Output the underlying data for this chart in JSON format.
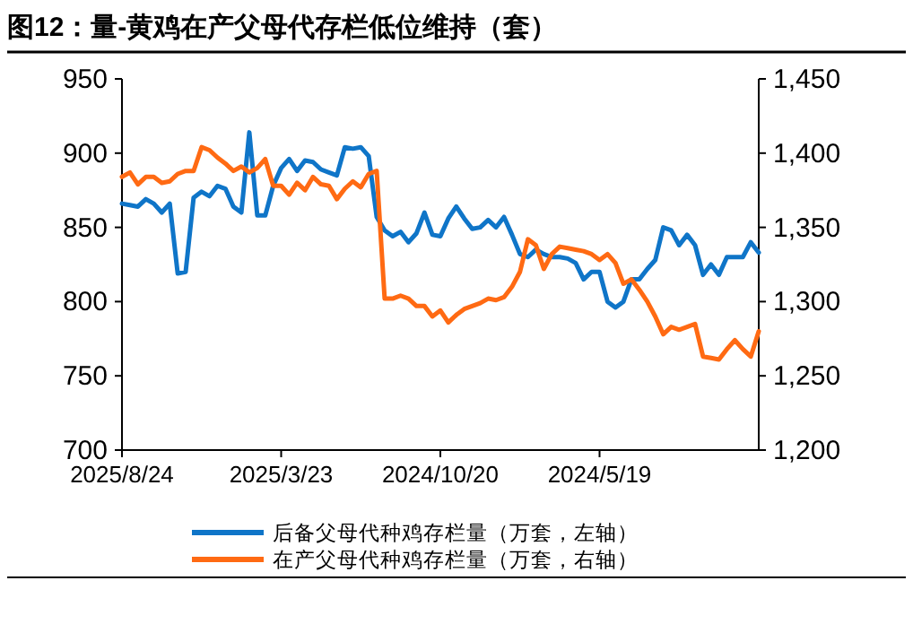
{
  "chart_data": {
    "type": "line",
    "title": "图12：量-黄鸡在产父母代存栏低位维持（套）",
    "categories": [
      "2025/8/24",
      null,
      null,
      null,
      null,
      null,
      null,
      null,
      null,
      null,
      null,
      null,
      null,
      null,
      null,
      null,
      null,
      null,
      null,
      null,
      "2025/3/23",
      null,
      null,
      null,
      null,
      null,
      null,
      null,
      null,
      null,
      null,
      null,
      null,
      null,
      null,
      null,
      null,
      null,
      null,
      null,
      "2024/10/20",
      null,
      null,
      null,
      null,
      null,
      null,
      null,
      null,
      null,
      null,
      null,
      null,
      null,
      null,
      null,
      null,
      null,
      null,
      null,
      "2024/5/19",
      null,
      null,
      null,
      null,
      null,
      null,
      null,
      null,
      null,
      null,
      null,
      null,
      null,
      null,
      null,
      null,
      null,
      null,
      null,
      null
    ],
    "series": [
      {
        "name": "后备父母代种鸡存栏量（万套，左轴）",
        "color": "#0f75c8",
        "values": [
          866,
          865,
          864,
          869,
          866,
          860,
          866,
          819,
          820,
          870,
          874,
          871,
          878,
          876,
          864,
          860,
          914,
          858,
          858,
          878,
          890,
          896,
          888,
          895,
          894,
          889,
          887,
          885,
          904,
          903,
          904,
          898,
          857,
          848,
          844,
          847,
          840,
          846,
          860,
          845,
          844,
          856,
          864,
          856,
          849,
          850,
          855,
          850,
          857,
          845,
          832,
          830,
          835,
          832,
          830,
          830,
          829,
          826,
          815,
          820,
          820,
          800,
          796,
          800,
          815,
          815,
          822,
          828,
          850,
          848,
          838,
          845,
          838,
          818,
          825,
          818,
          830,
          830,
          830,
          840,
          833
        ]
      },
      {
        "name": "在产父母代种鸡存栏量（万套，右轴）",
        "color": "#ff6a13",
        "axis": "y2",
        "values": [
          1384,
          1387,
          1379,
          1384,
          1384,
          1380,
          1381,
          1386,
          1388,
          1388,
          1404,
          1402,
          1397,
          1393,
          1388,
          1391,
          1387,
          1390,
          1396,
          1378,
          1378,
          1372,
          1380,
          1375,
          1384,
          1379,
          1378,
          1369,
          1376,
          1381,
          1377,
          1386,
          1388,
          1302,
          1302,
          1304,
          1302,
          1297,
          1297,
          1290,
          1294,
          1286,
          1291,
          1295,
          1297,
          1299,
          1302,
          1301,
          1303,
          1310,
          1320,
          1342,
          1338,
          1322,
          1332,
          1337,
          1336,
          1335,
          1334,
          1332,
          1328,
          1332,
          1326,
          1312,
          1315,
          1308,
          1300,
          1290,
          1278,
          1283,
          1281,
          1283,
          1285,
          1263,
          1262,
          1261,
          1268,
          1274,
          1268,
          1263,
          1280
        ]
      }
    ],
    "ylim": [
      700,
      950
    ],
    "yticks": [
      700,
      750,
      800,
      850,
      900,
      950
    ],
    "y2lim": [
      1200,
      1450
    ],
    "y2ticks": [
      {
        "value": 1200,
        "label": "1,200"
      },
      {
        "value": 1250,
        "label": "1,250"
      },
      {
        "value": 1300,
        "label": "1,300"
      },
      {
        "value": 1350,
        "label": "1,350"
      },
      {
        "value": 1400,
        "label": "1,400"
      },
      {
        "value": 1450,
        "label": "1,450"
      }
    ],
    "legend": "bottom",
    "grid": false
  }
}
